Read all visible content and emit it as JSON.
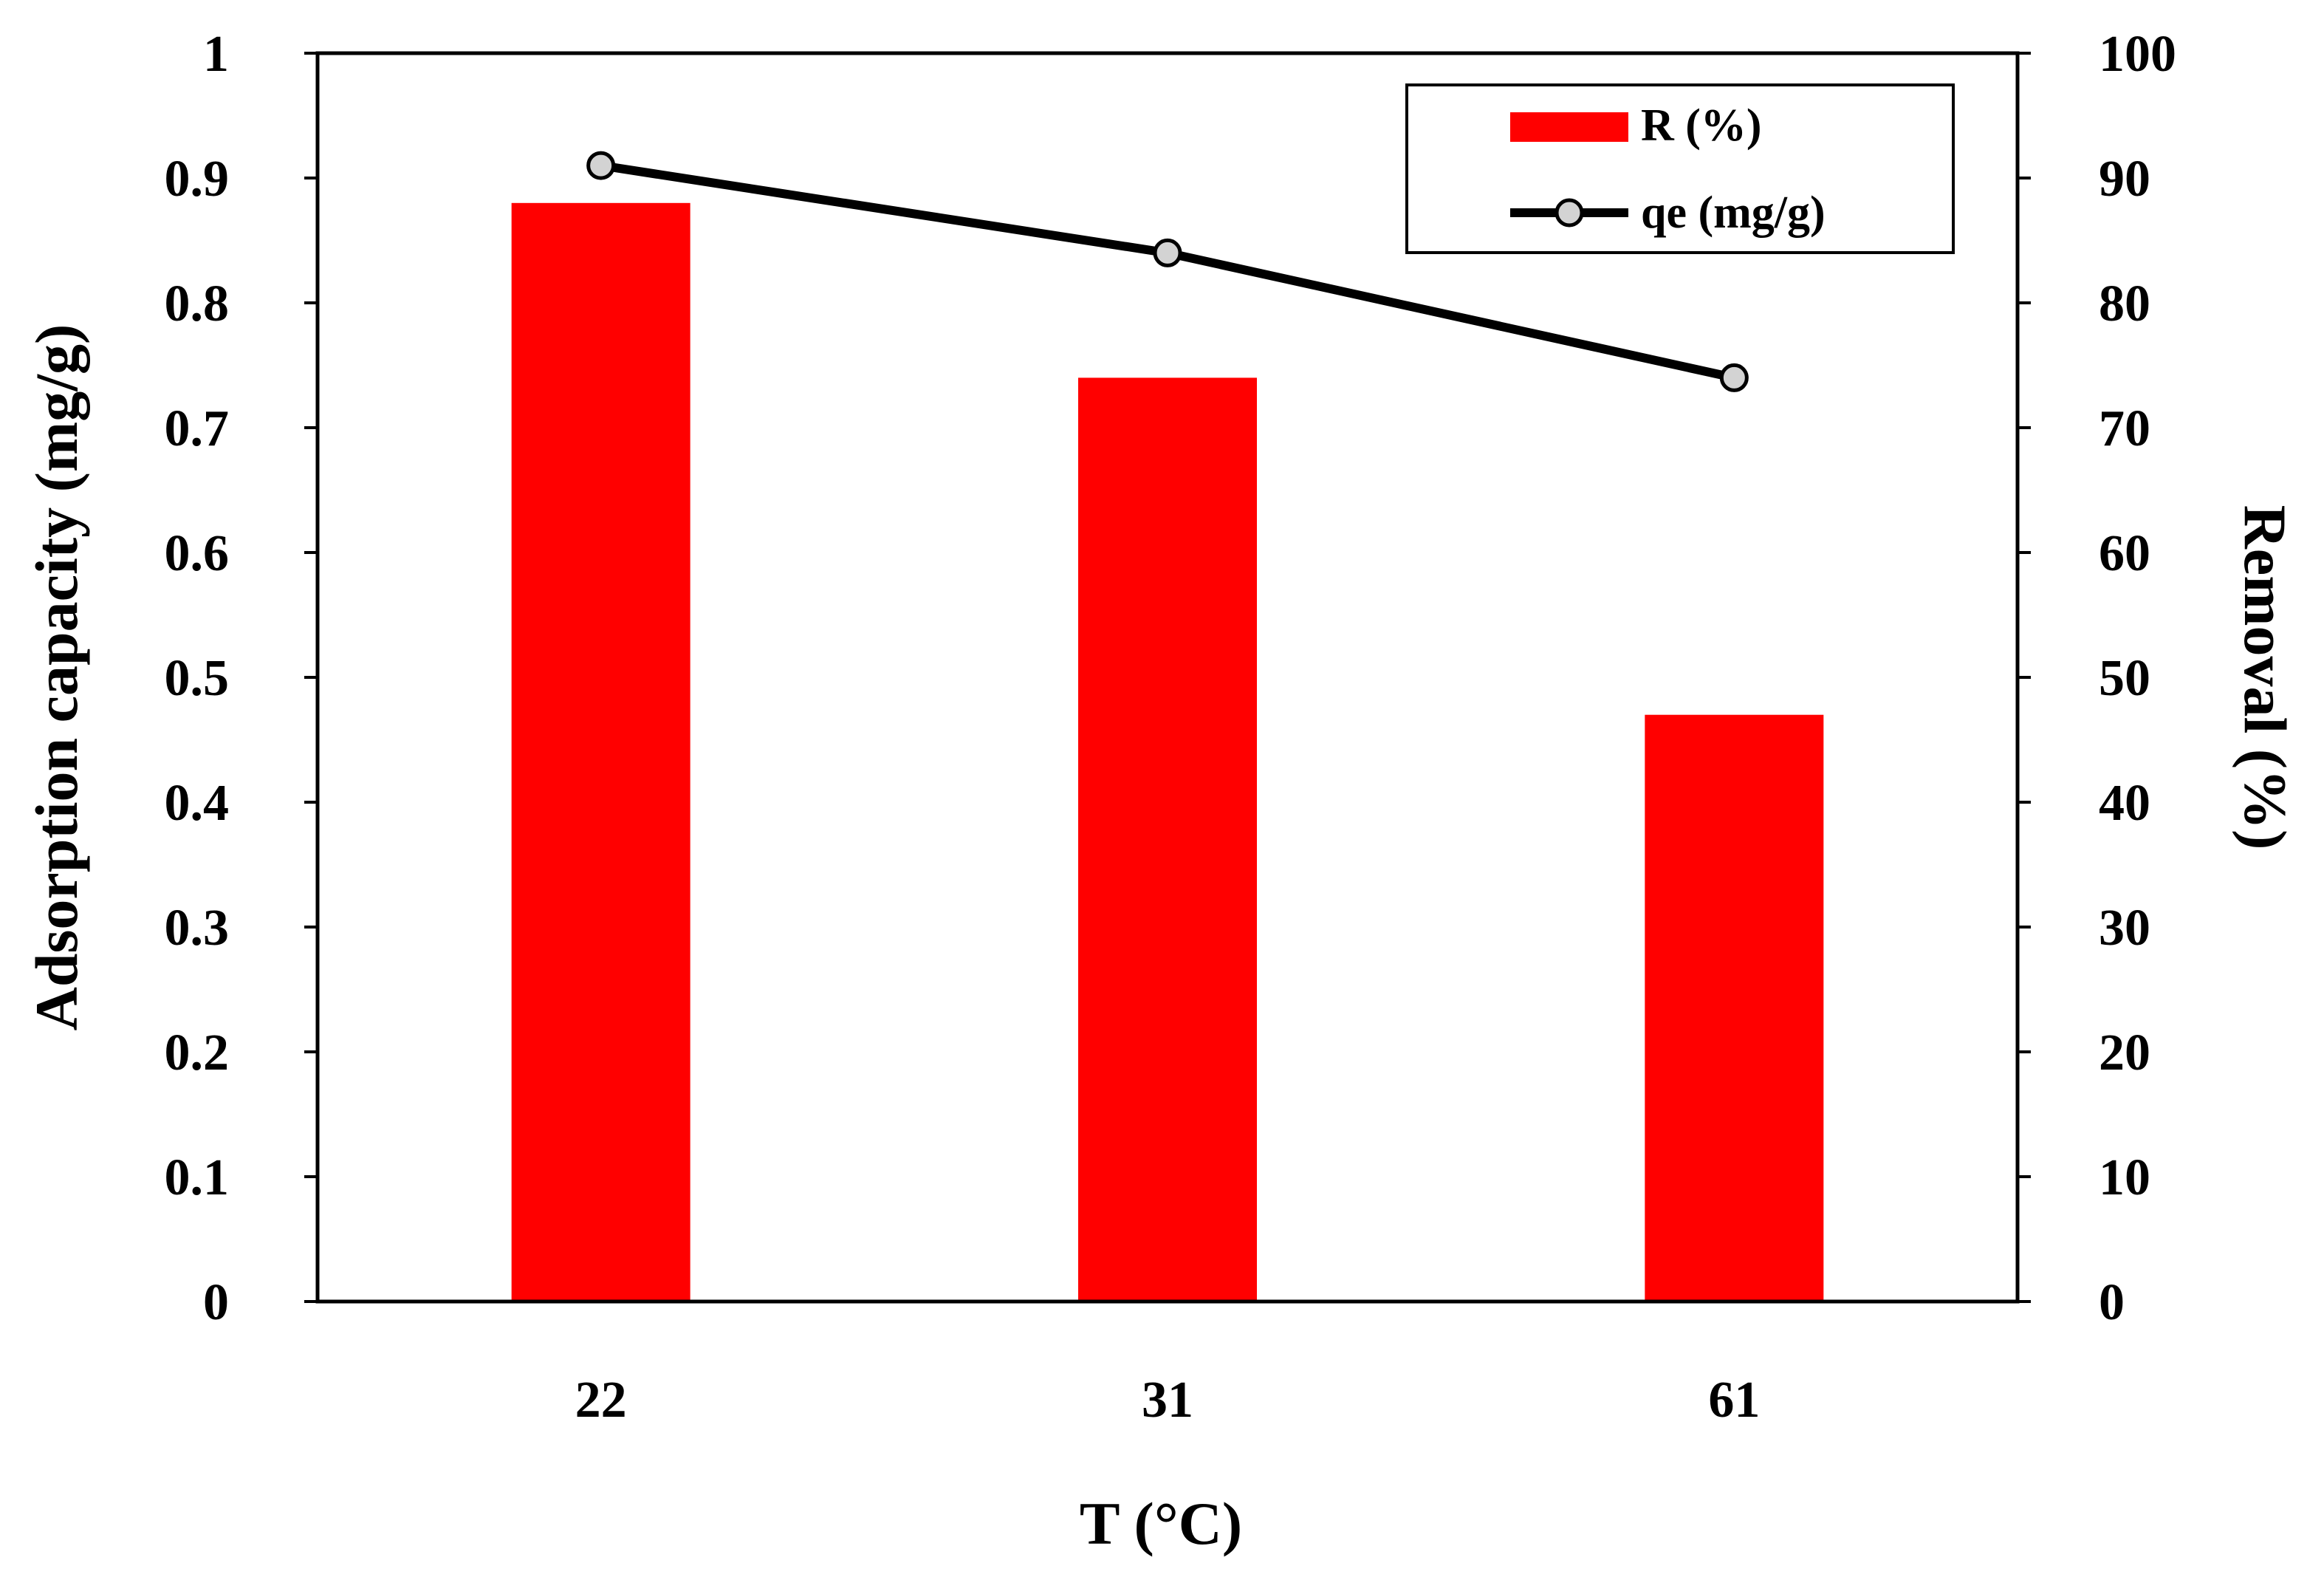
{
  "chart_data": {
    "type": "bar",
    "categories": [
      "22",
      "31",
      "61"
    ],
    "xlabel": "T (°C)",
    "ylabel_left": "Adsorption capacity (mg/g)",
    "ylabel_right": "Removal (%)",
    "ylim_left": [
      0,
      1
    ],
    "ylim_right": [
      0,
      100
    ],
    "yticks_left": [
      "0",
      "0.1",
      "0.2",
      "0.3",
      "0.4",
      "0.5",
      "0.6",
      "0.7",
      "0.8",
      "0.9",
      "1"
    ],
    "yticks_right": [
      "0",
      "10",
      "20",
      "30",
      "40",
      "50",
      "60",
      "70",
      "80",
      "90",
      "100"
    ],
    "grid": false,
    "legend_position": "top-right",
    "series": [
      {
        "name": "R (%)",
        "kind": "bar",
        "axis": "right",
        "color": "#ff0000",
        "values": [
          88,
          74,
          47
        ]
      },
      {
        "name": "qe (mg/g)",
        "kind": "line",
        "axis": "left",
        "color": "#000000",
        "marker_fill": "#d3d3d3",
        "values": [
          0.91,
          0.84,
          0.74
        ]
      }
    ]
  }
}
